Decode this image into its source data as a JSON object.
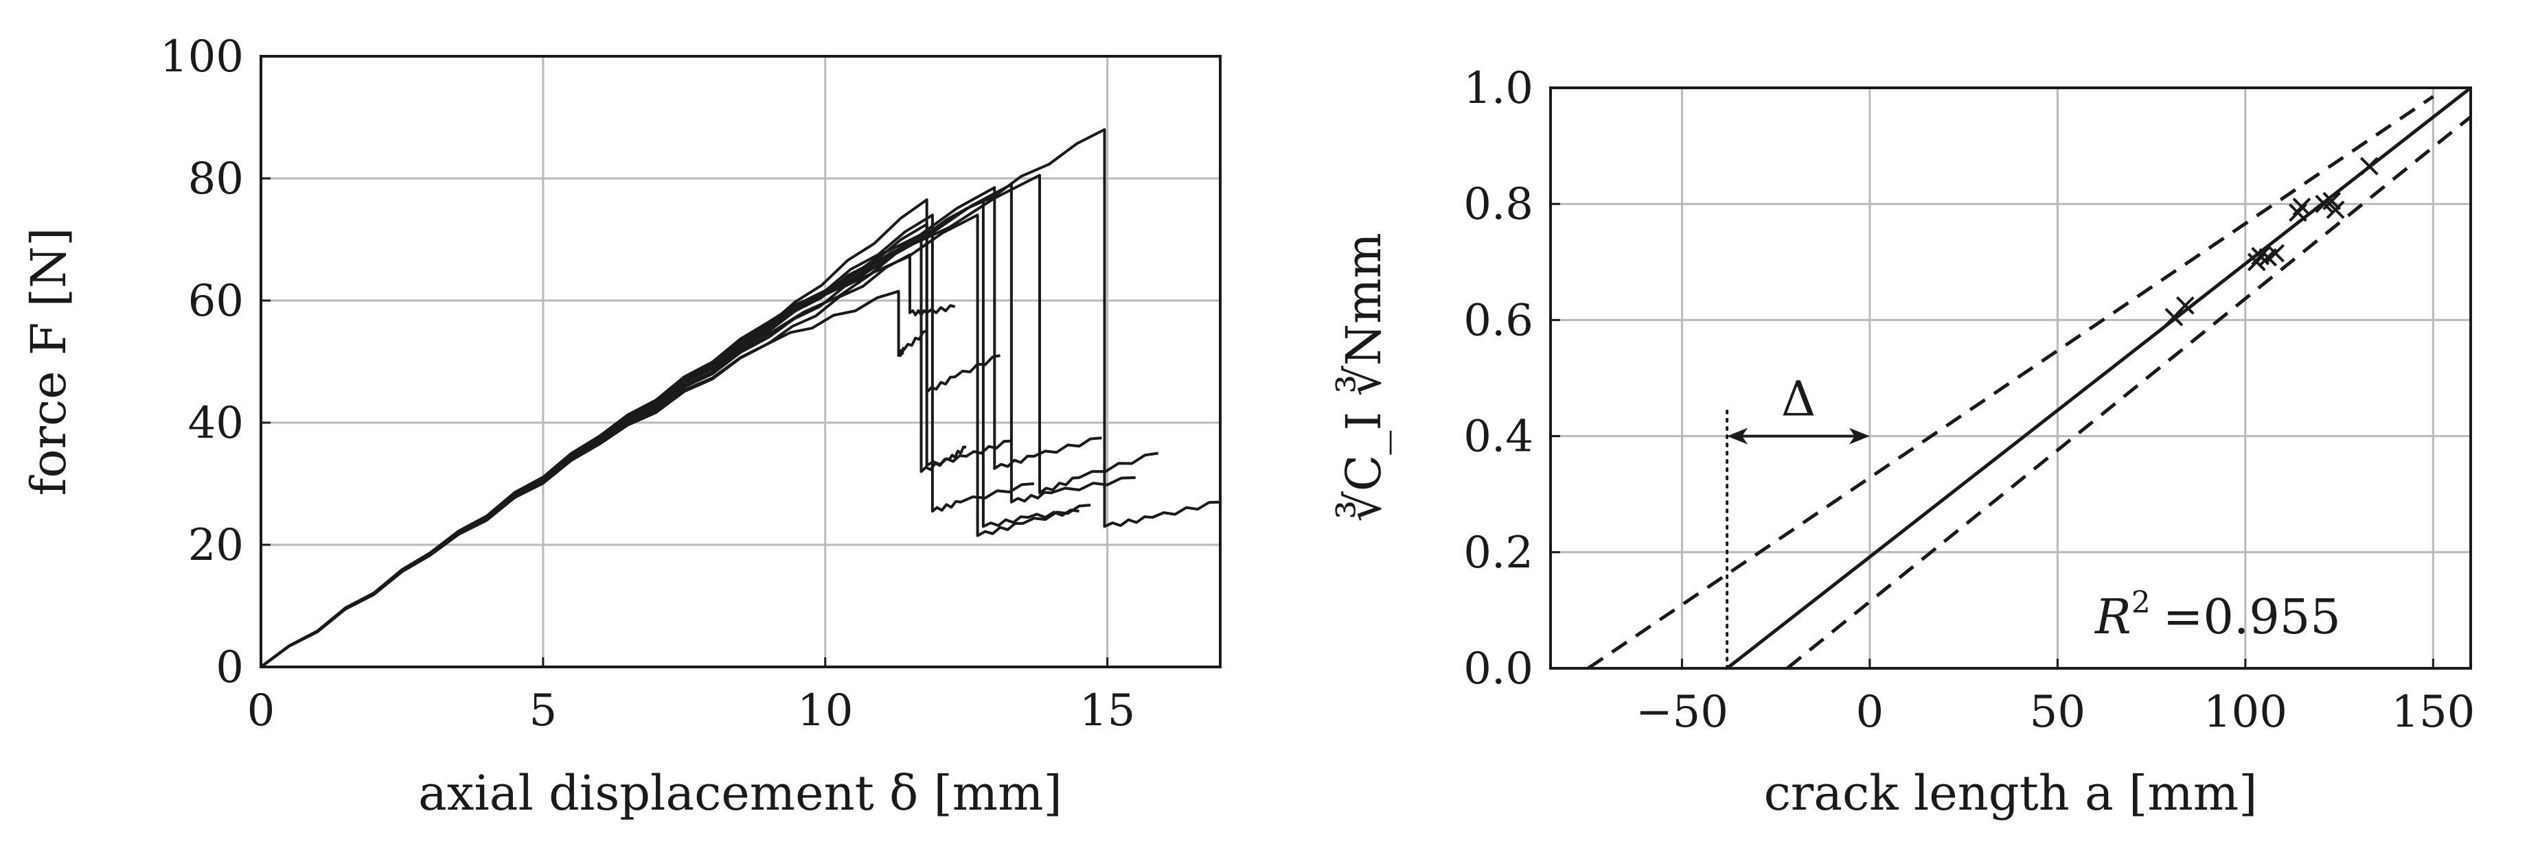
{
  "chart_data": [
    {
      "type": "line",
      "xlabel": "axial displacement δ [mm]",
      "ylabel": "force F [N]",
      "xlim": [
        0,
        17
      ],
      "ylim": [
        0,
        100
      ],
      "xticks": [
        0,
        5,
        10,
        15
      ],
      "yticks": [
        0,
        20,
        40,
        60,
        80,
        100
      ],
      "grid": true,
      "series": [
        {
          "x": [
            0,
            3,
            6,
            9,
            11.3,
            11.3,
            11.4,
            11.8
          ],
          "y": [
            0,
            18.5,
            37,
            53,
            61.5,
            51,
            52,
            55
          ]
        },
        {
          "x": [
            0,
            3,
            6,
            9,
            11.5,
            11.5,
            11.8,
            12.3
          ],
          "y": [
            0,
            18.3,
            36.5,
            53,
            67.5,
            58,
            58,
            59
          ]
        },
        {
          "x": [
            0,
            3,
            6,
            9,
            11.7,
            11.7,
            12.2,
            12.5
          ],
          "y": [
            0,
            18.3,
            37,
            54,
            70,
            32,
            34,
            36
          ]
        },
        {
          "x": [
            0,
            3,
            6,
            9,
            11.8,
            11.8,
            12.3,
            13.1
          ],
          "y": [
            0,
            18.5,
            37.5,
            55,
            72.5,
            45,
            47.5,
            51
          ]
        },
        {
          "x": [
            0,
            3,
            6,
            9,
            11.9,
            11.9,
            12.4,
            13.7
          ],
          "y": [
            0,
            18.5,
            37.5,
            55.5,
            74,
            25.5,
            27,
            30
          ]
        },
        {
          "x": [
            0,
            3,
            6,
            9,
            11.8,
            11.8,
            12.5,
            13.3
          ],
          "y": [
            0,
            18.6,
            37.8,
            56,
            76.5,
            33,
            34.5,
            37
          ]
        },
        {
          "x": [
            0,
            3,
            6,
            9,
            12.7,
            12.7,
            13.5,
            14.7
          ],
          "y": [
            0,
            18.4,
            37,
            54.5,
            74,
            21.5,
            23.5,
            26.5
          ]
        },
        {
          "x": [
            0,
            3,
            6,
            9,
            12.8,
            12.8,
            13.6,
            14.5
          ],
          "y": [
            0,
            18.5,
            37.2,
            55.5,
            76.5,
            23,
            24.5,
            25.5
          ]
        },
        {
          "x": [
            0,
            3,
            6,
            9,
            13,
            13,
            13.7,
            14.9
          ],
          "y": [
            0,
            18.6,
            37.5,
            56,
            78.5,
            32.5,
            34.5,
            37.5
          ]
        },
        {
          "x": [
            0,
            3,
            6,
            9,
            13.3,
            13.3,
            14,
            15.5
          ],
          "y": [
            0,
            18.5,
            37.3,
            55.8,
            79,
            27,
            28.5,
            31
          ]
        },
        {
          "x": [
            0,
            3,
            6,
            9,
            13.8,
            13.8,
            14.5,
            15.9
          ],
          "y": [
            0,
            18.6,
            37.5,
            56,
            80.5,
            28.5,
            31,
            35
          ]
        },
        {
          "x": [
            0,
            3,
            6,
            9,
            12,
            14.95,
            14.95,
            15.8,
            17
          ],
          "y": [
            0,
            18.7,
            37.8,
            56.5,
            72,
            88,
            23,
            24.5,
            27
          ]
        }
      ]
    },
    {
      "type": "scatter",
      "xlabel": "crack length a [mm]",
      "ylabel": "∛C_I ∛Nmm",
      "xlim": [
        -85,
        160
      ],
      "ylim": [
        0.0,
        1.0
      ],
      "xticks": [
        -50,
        0,
        50,
        100,
        150
      ],
      "xtick_labels": [
        "−50",
        "0",
        "50",
        "100",
        "150"
      ],
      "yticks": [
        0.0,
        0.2,
        0.4,
        0.6,
        0.8,
        1.0
      ],
      "ytick_labels": [
        "0.0",
        "0.2",
        "0.4",
        "0.6",
        "0.8",
        "1.0"
      ],
      "grid": true,
      "points": [
        {
          "x": 81,
          "y": 0.605
        },
        {
          "x": 84,
          "y": 0.625
        },
        {
          "x": 103,
          "y": 0.7
        },
        {
          "x": 104,
          "y": 0.71
        },
        {
          "x": 106,
          "y": 0.708
        },
        {
          "x": 108,
          "y": 0.715
        },
        {
          "x": 114,
          "y": 0.785
        },
        {
          "x": 115,
          "y": 0.795
        },
        {
          "x": 121,
          "y": 0.8
        },
        {
          "x": 123,
          "y": 0.805
        },
        {
          "x": 124,
          "y": 0.79
        },
        {
          "x": 133,
          "y": 0.865
        }
      ],
      "fit": {
        "x": [
          -38,
          160
        ],
        "y": [
          0,
          1.0
        ]
      },
      "bounds": [
        {
          "x": [
            -75,
            150
          ],
          "y": [
            0,
            0.985
          ]
        },
        {
          "x": [
            -22,
            160
          ],
          "y": [
            0,
            0.95
          ]
        }
      ],
      "reference_x": -38,
      "delta_arrow": {
        "from": -38,
        "to": 0,
        "y": 0.4
      },
      "delta_label": "Δ",
      "r2_label": "R",
      "r2_value": "=0.955"
    }
  ]
}
